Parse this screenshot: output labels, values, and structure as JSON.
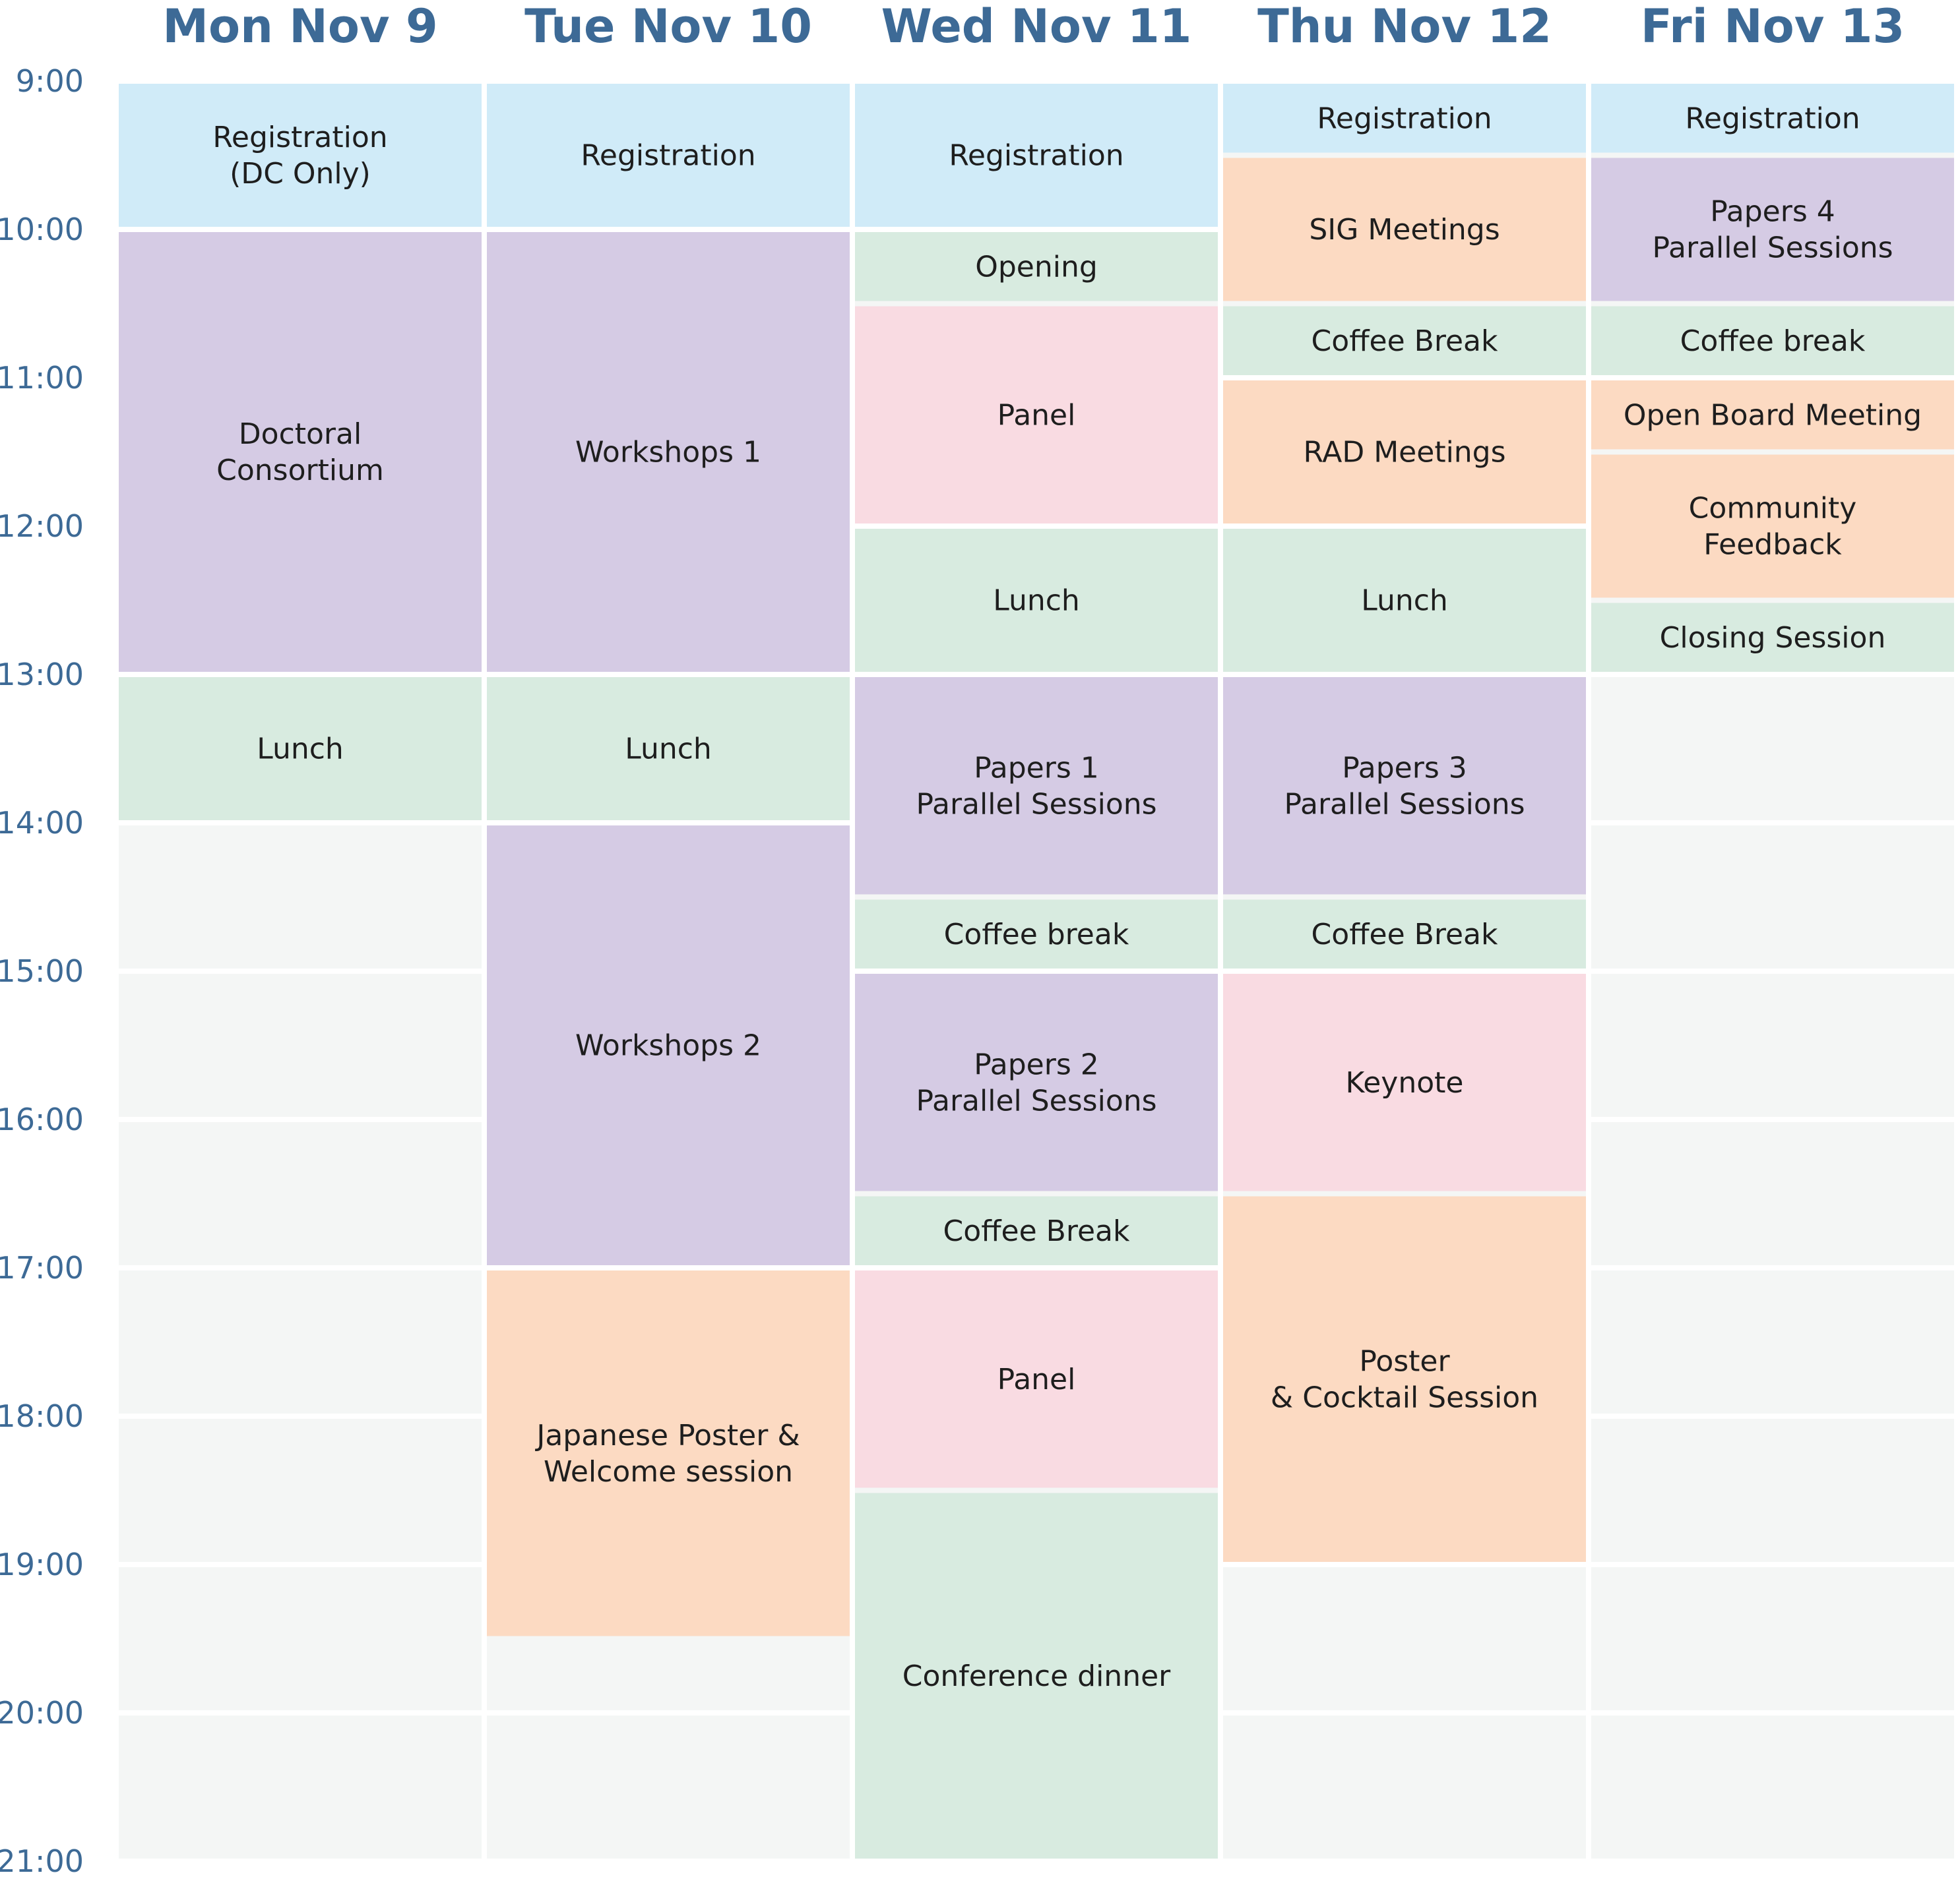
{
  "axis": {
    "range": [
      9,
      21
    ],
    "ticks": [
      {
        "value": 9,
        "label": "9:00"
      },
      {
        "value": 10,
        "label": "10:00"
      },
      {
        "value": 11,
        "label": "11:00"
      },
      {
        "value": 12,
        "label": "12:00"
      },
      {
        "value": 13,
        "label": "13:00"
      },
      {
        "value": 14,
        "label": "14:00"
      },
      {
        "value": 15,
        "label": "15:00"
      },
      {
        "value": 16,
        "label": "16:00"
      },
      {
        "value": 17,
        "label": "17:00"
      },
      {
        "value": 18,
        "label": "18:00"
      },
      {
        "value": 19,
        "label": "19:00"
      },
      {
        "value": 20,
        "label": "20:00"
      },
      {
        "value": 21,
        "label": "21:00"
      }
    ]
  },
  "days": [
    {
      "title": "Mon Nov 9",
      "events": [
        {
          "lines": [
            "Registration",
            "(DC Only)"
          ],
          "start": 9,
          "end": 10,
          "color": "#d0ebf8"
        },
        {
          "lines": [
            "Doctoral",
            "Consortium"
          ],
          "start": 10,
          "end": 13,
          "color": "#d5cbe4"
        },
        {
          "lines": [
            "Lunch"
          ],
          "start": 13,
          "end": 14,
          "color": "#d8ebe0"
        }
      ]
    },
    {
      "title": "Tue Nov 10",
      "events": [
        {
          "lines": [
            "Registration"
          ],
          "start": 9,
          "end": 10,
          "color": "#d0ebf8"
        },
        {
          "lines": [
            "Workshops 1"
          ],
          "start": 10,
          "end": 13,
          "color": "#d5cbe4"
        },
        {
          "lines": [
            "Lunch"
          ],
          "start": 13,
          "end": 14,
          "color": "#d8ebe0"
        },
        {
          "lines": [
            "Workshops 2"
          ],
          "start": 14,
          "end": 17,
          "color": "#d5cbe4"
        },
        {
          "lines": [
            "Japanese Poster &",
            "Welcome session"
          ],
          "start": 17,
          "end": 19.5,
          "color": "#fcdac2"
        }
      ]
    },
    {
      "title": "Wed Nov 11",
      "events": [
        {
          "lines": [
            "Registration"
          ],
          "start": 9,
          "end": 10,
          "color": "#d0ebf8"
        },
        {
          "lines": [
            "Opening"
          ],
          "start": 10,
          "end": 10.5,
          "color": "#d8ebe0"
        },
        {
          "lines": [
            "Panel"
          ],
          "start": 10.5,
          "end": 12,
          "color": "#f9dbe2"
        },
        {
          "lines": [
            "Lunch"
          ],
          "start": 12,
          "end": 13,
          "color": "#d8ebe0"
        },
        {
          "lines": [
            "Papers 1",
            "Parallel Sessions"
          ],
          "start": 13,
          "end": 14.5,
          "color": "#d5cbe4"
        },
        {
          "lines": [
            "Coffee break"
          ],
          "start": 14.5,
          "end": 15,
          "color": "#d8ebe0"
        },
        {
          "lines": [
            "Papers 2",
            "Parallel Sessions"
          ],
          "start": 15,
          "end": 16.5,
          "color": "#d5cbe4"
        },
        {
          "lines": [
            "Coffee Break"
          ],
          "start": 16.5,
          "end": 17,
          "color": "#d8ebe0"
        },
        {
          "lines": [
            "Panel"
          ],
          "start": 17,
          "end": 18.5,
          "color": "#f9dbe2"
        },
        {
          "lines": [
            "Conference dinner"
          ],
          "start": 18.5,
          "end": 21,
          "color": "#d8ebe0"
        }
      ]
    },
    {
      "title": "Thu Nov 12",
      "events": [
        {
          "lines": [
            "Registration"
          ],
          "start": 9,
          "end": 9.5,
          "color": "#d0ebf8"
        },
        {
          "lines": [
            "SIG Meetings"
          ],
          "start": 9.5,
          "end": 10.5,
          "color": "#fcdac2"
        },
        {
          "lines": [
            "Coffee Break"
          ],
          "start": 10.5,
          "end": 11,
          "color": "#d8ebe0"
        },
        {
          "lines": [
            "RAD Meetings"
          ],
          "start": 11,
          "end": 12,
          "color": "#fcdac2"
        },
        {
          "lines": [
            "Lunch"
          ],
          "start": 12,
          "end": 13,
          "color": "#d8ebe0"
        },
        {
          "lines": [
            "Papers 3",
            "Parallel Sessions"
          ],
          "start": 13,
          "end": 14.5,
          "color": "#d5cbe4"
        },
        {
          "lines": [
            "Coffee Break"
          ],
          "start": 14.5,
          "end": 15,
          "color": "#d8ebe0"
        },
        {
          "lines": [
            "Keynote"
          ],
          "start": 15,
          "end": 16.5,
          "color": "#f9dbe2"
        },
        {
          "lines": [
            "Poster",
            "& Cocktail Session"
          ],
          "start": 16.5,
          "end": 19,
          "color": "#fcdac2"
        }
      ]
    },
    {
      "title": "Fri Nov 13",
      "events": [
        {
          "lines": [
            "Registration"
          ],
          "start": 9,
          "end": 9.5,
          "color": "#d0ebf8"
        },
        {
          "lines": [
            "Papers 4",
            "Parallel Sessions"
          ],
          "start": 9.5,
          "end": 10.5,
          "color": "#d5cbe4"
        },
        {
          "lines": [
            "Coffee break"
          ],
          "start": 10.5,
          "end": 11,
          "color": "#d8ebe0"
        },
        {
          "lines": [
            "Open Board Meeting"
          ],
          "start": 11,
          "end": 11.5,
          "color": "#fcdac2"
        },
        {
          "lines": [
            "Community",
            "Feedback"
          ],
          "start": 11.5,
          "end": 12.5,
          "color": "#fcdac2"
        },
        {
          "lines": [
            "Closing Session"
          ],
          "start": 12.5,
          "end": 13,
          "color": "#d8ebe0"
        }
      ]
    }
  ]
}
